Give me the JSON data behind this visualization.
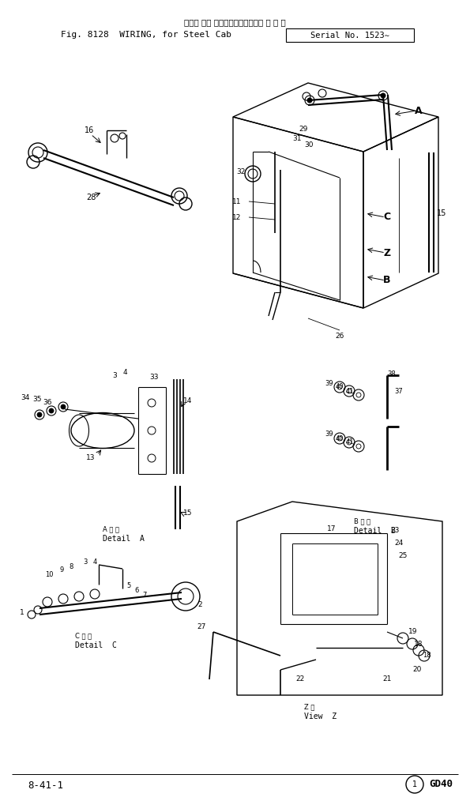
{
  "fig_width": 5.95,
  "fig_height": 10.14,
  "dpi": 100,
  "bg_color": "#ffffff",
  "title_jp": "配線， 線， スチールキャブ用（適 用 号 機",
  "title_en1": "Fig. 8128  WIRING, for Steel Cab",
  "title_en2": "Serial No. 1523∼",
  "footer_left": "8-41-1",
  "footer_right": "GD40"
}
